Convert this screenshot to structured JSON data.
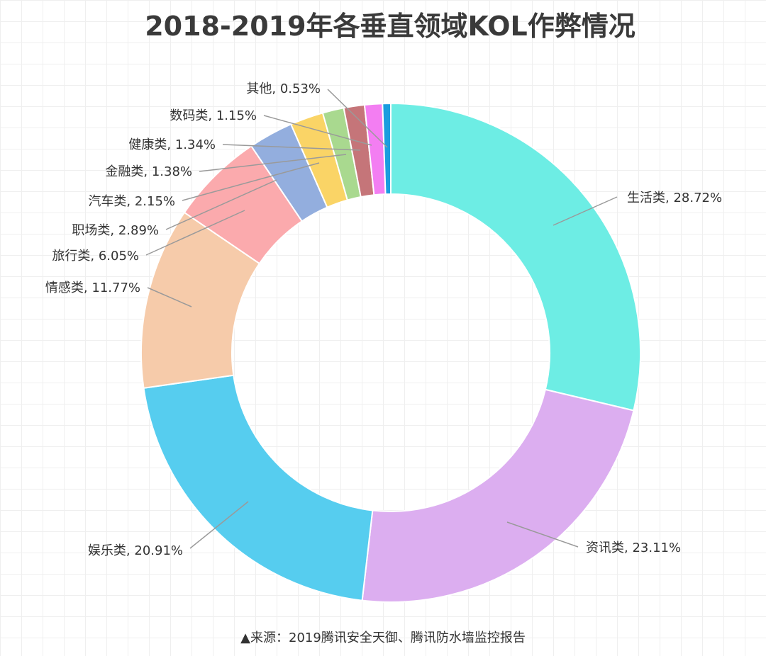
{
  "chart_data": {
    "type": "donut",
    "title": "2018-2019年各垂直领域KOL作弊情况",
    "series": [
      {
        "label": "生活类",
        "value": 28.72,
        "display": "生活类, 28.72%",
        "color": "#6DEDE4"
      },
      {
        "label": "资讯类",
        "value": 23.11,
        "display": "资讯类, 23.11%",
        "color": "#DCAEF0"
      },
      {
        "label": "娱乐类",
        "value": 20.91,
        "display": "娱乐类, 20.91%",
        "color": "#56CDEF"
      },
      {
        "label": "情感类",
        "value": 11.77,
        "display": "情感类, 11.77%",
        "color": "#F6CBAA"
      },
      {
        "label": "旅行类",
        "value": 6.05,
        "display": "旅行类, 6.05%",
        "color": "#FBAAAD"
      },
      {
        "label": "职场类",
        "value": 2.89,
        "display": "职场类, 2.89%",
        "color": "#93AEDE"
      },
      {
        "label": "汽车类",
        "value": 2.15,
        "display": "汽车类, 2.15%",
        "color": "#FAD466"
      },
      {
        "label": "金融类",
        "value": 1.38,
        "display": "金融类, 1.38%",
        "color": "#A9D98F"
      },
      {
        "label": "健康类",
        "value": 1.34,
        "display": "健康类, 1.34%",
        "color": "#C57579"
      },
      {
        "label": "数码类",
        "value": 1.15,
        "display": "数码类, 1.15%",
        "color": "#F37EF2"
      },
      {
        "label": "其他",
        "value": 0.53,
        "display": "其他, 0.53%",
        "color": "#1A9DDF"
      }
    ]
  },
  "footer": {
    "source": "▲来源：2019腾讯安全天御、腾讯防水墙监控报告"
  }
}
